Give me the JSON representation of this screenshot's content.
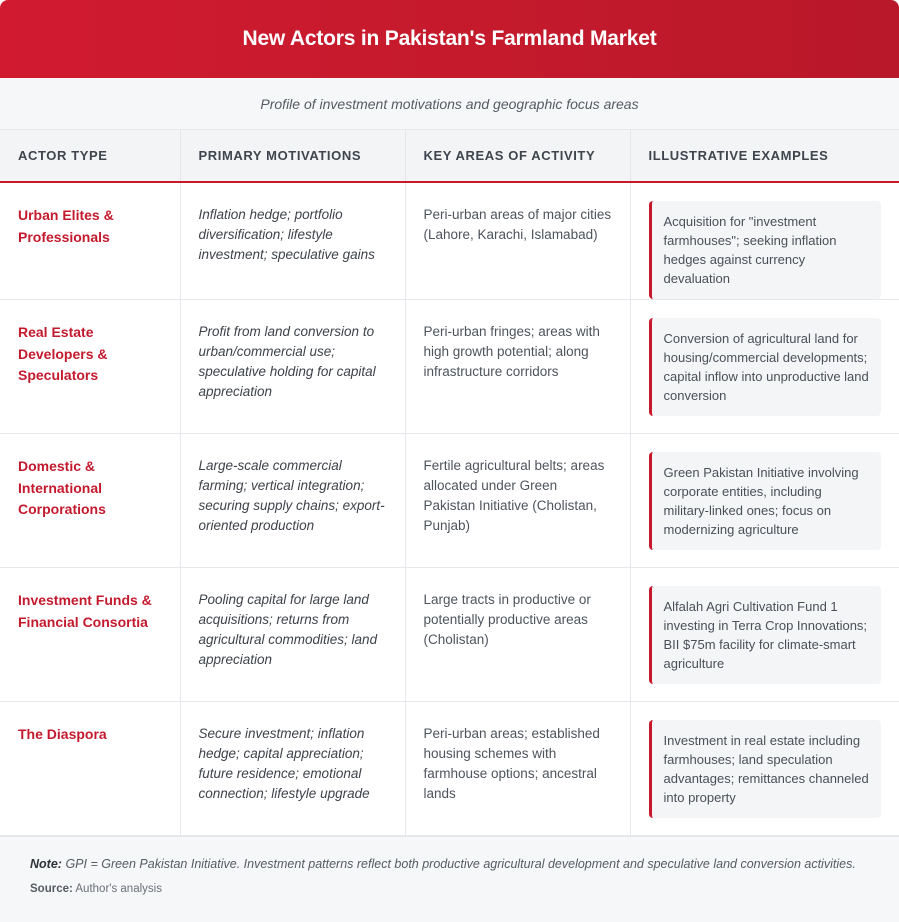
{
  "title": "New Actors in Pakistan's Farmland Market",
  "subtitle": "Profile of investment motivations and geographic focus areas",
  "columns": [
    "ACTOR TYPE",
    "PRIMARY MOTIVATIONS",
    "KEY AREAS OF ACTIVITY",
    "ILLUSTRATIVE EXAMPLES"
  ],
  "rows": [
    {
      "actor": "Urban Elites & Professionals",
      "motivations": "Inflation hedge; portfolio diversification; lifestyle investment; speculative gains",
      "areas": "Peri-urban areas of major cities (Lahore, Karachi, Islamabad)",
      "example": "Acquisition for \"investment farmhouses\"; seeking inflation hedges against currency devaluation"
    },
    {
      "actor": "Real Estate Developers & Speculators",
      "motivations": "Profit from land conversion to urban/commercial use; speculative holding for capital appreciation",
      "areas": "Peri-urban fringes; areas with high growth potential; along infrastructure corridors",
      "example": "Conversion of agricultural land for housing/commercial developments; capital inflow into unproductive land conversion"
    },
    {
      "actor": "Domestic & International Corporations",
      "motivations": "Large-scale commercial farming; vertical integration; securing supply chains; export-oriented production",
      "areas": "Fertile agricultural belts; areas allocated under Green Pakistan Initiative (Cholistan, Punjab)",
      "example": "Green Pakistan Initiative involving corporate entities, including military-linked ones; focus on modernizing agriculture"
    },
    {
      "actor": "Investment Funds & Financial Consortia",
      "motivations": "Pooling capital for large land acquisitions; returns from agricultural commodities; land appreciation",
      "areas": "Large tracts in productive or potentially productive areas (Cholistan)",
      "example": "Alfalah Agri Cultivation Fund 1 investing in Terra Crop Innovations; BII $75m facility for climate-smart agriculture"
    },
    {
      "actor": "The Diaspora",
      "motivations": "Secure investment; inflation hedge; capital appreciation; future residence; emotional connection; lifestyle upgrade",
      "areas": "Peri-urban areas; established housing schemes with farmhouse options; ancestral lands",
      "example": "Investment in real estate including farmhouses; land speculation advantages; remittances channeled into property"
    }
  ],
  "footer": {
    "note_label": "Note:",
    "note_text": "GPI = Green Pakistan Initiative. Investment patterns reflect both productive agricultural development and speculative land conversion activities.",
    "source_label": "Source:",
    "source_text": "Author's analysis"
  },
  "colors": {
    "accent": "#c8192c",
    "header_bg": "#d11a30"
  }
}
